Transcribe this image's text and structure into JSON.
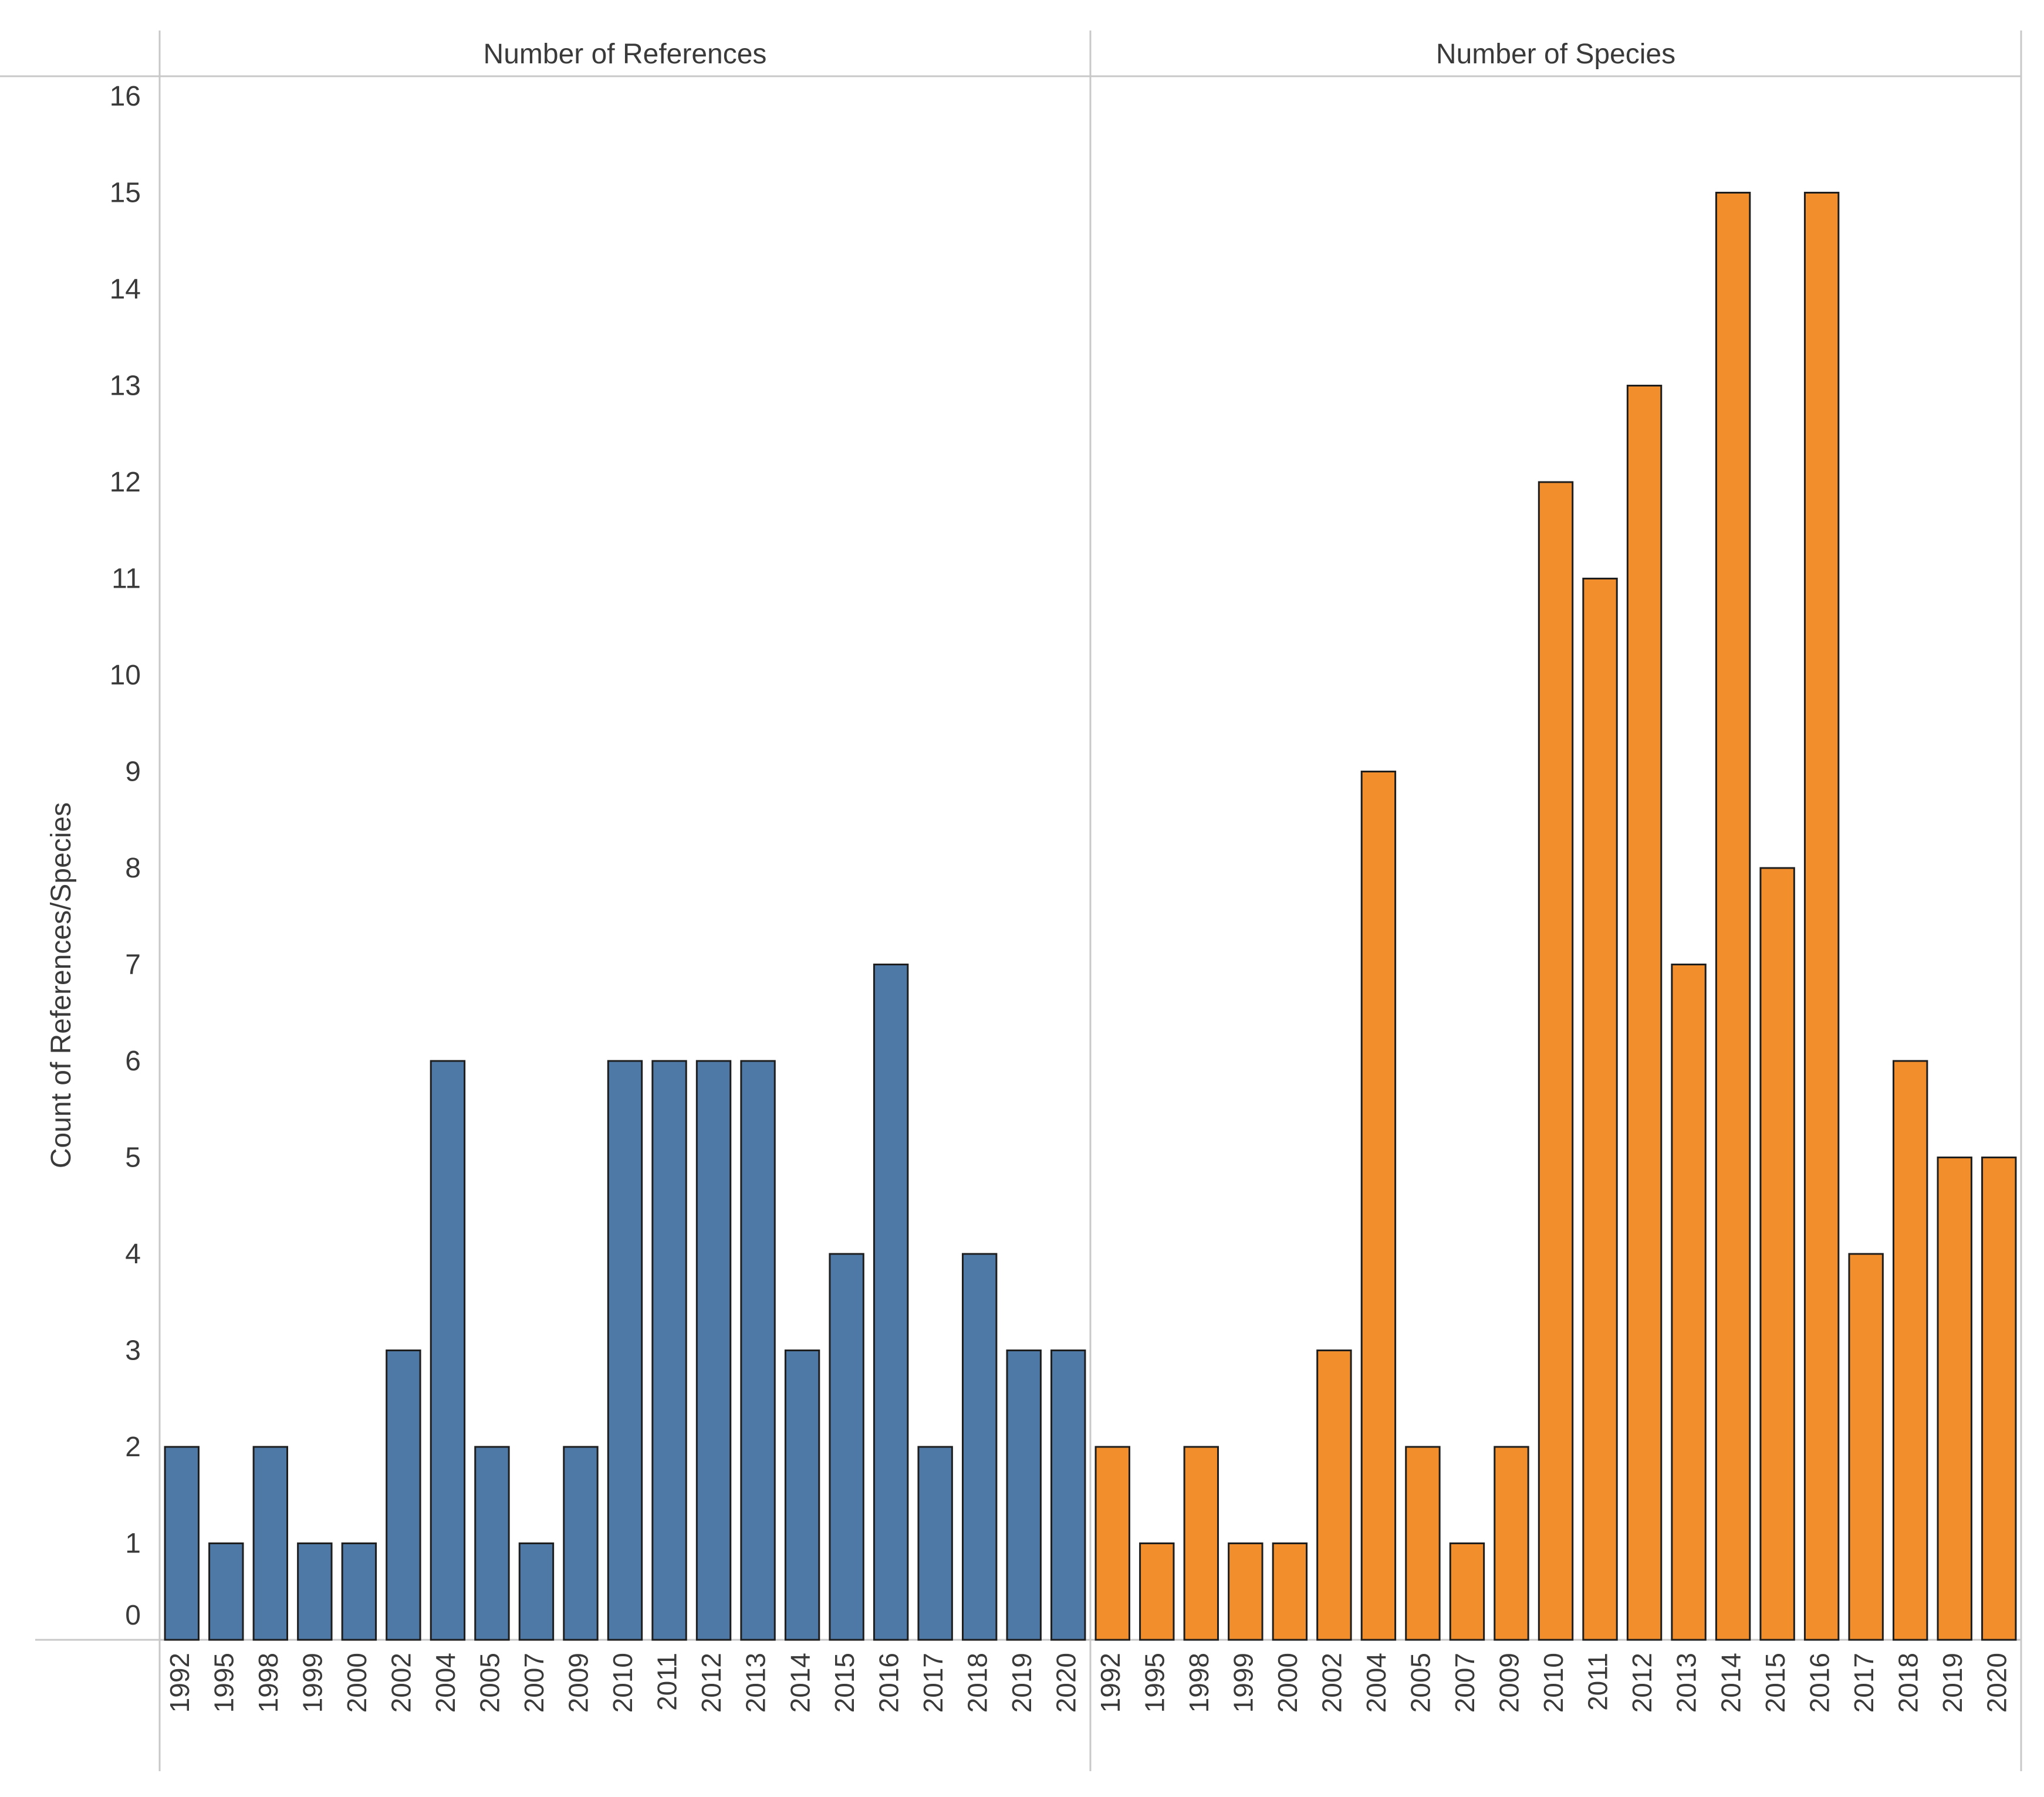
{
  "chart_data": {
    "type": "bar",
    "ylabel": "Count of References/Species",
    "ylim": [
      0,
      16
    ],
    "yticks": [
      0,
      1,
      2,
      3,
      4,
      5,
      6,
      7,
      8,
      9,
      10,
      11,
      12,
      13,
      14,
      15,
      16
    ],
    "grid": false,
    "categories": [
      "1992",
      "1995",
      "1998",
      "1999",
      "2000",
      "2002",
      "2004",
      "2005",
      "2007",
      "2009",
      "2010",
      "2011",
      "2012",
      "2013",
      "2014",
      "2015",
      "2016",
      "2017",
      "2018",
      "2019",
      "2020"
    ],
    "series": [
      {
        "name": "Number of References",
        "color": "#4e79a7",
        "values": [
          2,
          1,
          2,
          1,
          1,
          3,
          6,
          2,
          1,
          2,
          6,
          6,
          6,
          6,
          3,
          4,
          7,
          2,
          4,
          3,
          3
        ]
      },
      {
        "name": "Number of Species",
        "color": "#f28e2b",
        "values": [
          2,
          1,
          2,
          1,
          1,
          3,
          9,
          2,
          1,
          2,
          12,
          11,
          13,
          7,
          15,
          8,
          15,
          4,
          6,
          5,
          5
        ]
      }
    ]
  }
}
